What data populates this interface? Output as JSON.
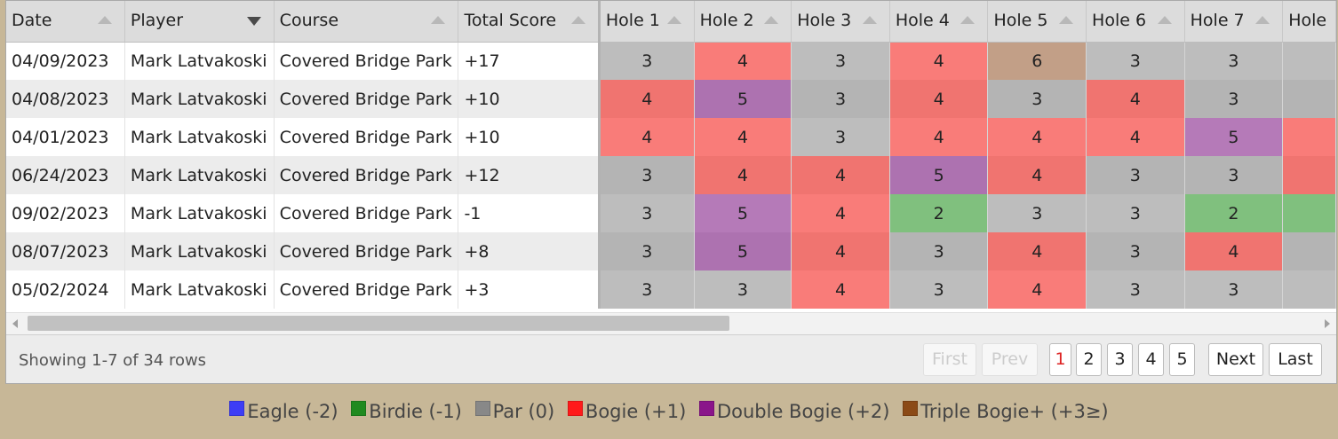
{
  "columns": {
    "date": "Date",
    "player": "Player",
    "course": "Course",
    "total": "Total Score",
    "holes": [
      "Hole 1",
      "Hole 2",
      "Hole 3",
      "Hole 4",
      "Hole 5",
      "Hole 6",
      "Hole 7",
      "Hole"
    ]
  },
  "rows": [
    {
      "date": "04/09/2023",
      "player": "Mark Latvakoski",
      "course": "Covered Bridge Park",
      "total": "+17",
      "holes": [
        "3",
        "4",
        "3",
        "4",
        "6",
        "3",
        "3",
        ""
      ],
      "classes": [
        "par",
        "bogey",
        "par",
        "bogey",
        "triple",
        "par",
        "par",
        "par"
      ]
    },
    {
      "date": "04/08/2023",
      "player": "Mark Latvakoski",
      "course": "Covered Bridge Park",
      "total": "+10",
      "holes": [
        "4",
        "5",
        "3",
        "4",
        "3",
        "4",
        "3",
        ""
      ],
      "classes": [
        "bogey",
        "double",
        "par",
        "bogey",
        "par",
        "bogey",
        "par",
        "par"
      ]
    },
    {
      "date": "04/01/2023",
      "player": "Mark Latvakoski",
      "course": "Covered Bridge Park",
      "total": "+10",
      "holes": [
        "4",
        "4",
        "3",
        "4",
        "4",
        "4",
        "5",
        ""
      ],
      "classes": [
        "bogey",
        "bogey",
        "par",
        "bogey",
        "bogey",
        "bogey",
        "double",
        "bogey"
      ]
    },
    {
      "date": "06/24/2023",
      "player": "Mark Latvakoski",
      "course": "Covered Bridge Park",
      "total": "+12",
      "holes": [
        "3",
        "4",
        "4",
        "5",
        "4",
        "3",
        "3",
        ""
      ],
      "classes": [
        "par",
        "bogey",
        "bogey",
        "double",
        "bogey",
        "par",
        "par",
        "bogey"
      ]
    },
    {
      "date": "09/02/2023",
      "player": "Mark Latvakoski",
      "course": "Covered Bridge Park",
      "total": "-1",
      "holes": [
        "3",
        "5",
        "4",
        "2",
        "3",
        "3",
        "2",
        ""
      ],
      "classes": [
        "par",
        "double",
        "bogey",
        "birdie",
        "par",
        "par",
        "birdie",
        "birdie"
      ]
    },
    {
      "date": "08/07/2023",
      "player": "Mark Latvakoski",
      "course": "Covered Bridge Park",
      "total": "+8",
      "holes": [
        "3",
        "5",
        "4",
        "3",
        "4",
        "3",
        "4",
        ""
      ],
      "classes": [
        "par",
        "double",
        "bogey",
        "par",
        "bogey",
        "par",
        "bogey",
        "par"
      ]
    },
    {
      "date": "05/02/2024",
      "player": "Mark Latvakoski",
      "course": "Covered Bridge Park",
      "total": "+3",
      "holes": [
        "3",
        "3",
        "4",
        "3",
        "4",
        "3",
        "3",
        ""
      ],
      "classes": [
        "par",
        "par",
        "bogey",
        "par",
        "bogey",
        "par",
        "par",
        "par"
      ]
    }
  ],
  "pagination": {
    "showing": "Showing 1-7 of 34 rows",
    "first": "First",
    "prev": "Prev",
    "pages": [
      "1",
      "2",
      "3",
      "4",
      "5"
    ],
    "current_page": "1",
    "next": "Next",
    "last": "Last"
  },
  "legend": [
    {
      "label": "Eagle (-2)",
      "color": "#3d3df5"
    },
    {
      "label": "Birdie (-1)",
      "color": "#1f8a1f"
    },
    {
      "label": "Par (0)",
      "color": "#888888"
    },
    {
      "label": "Bogie (+1)",
      "color": "#ff1a1a"
    },
    {
      "label": "Double Bogie (+2)",
      "color": "#8a158a"
    },
    {
      "label": "Triple Bogie+ (+3≥)",
      "color": "#8b4a16"
    }
  ]
}
